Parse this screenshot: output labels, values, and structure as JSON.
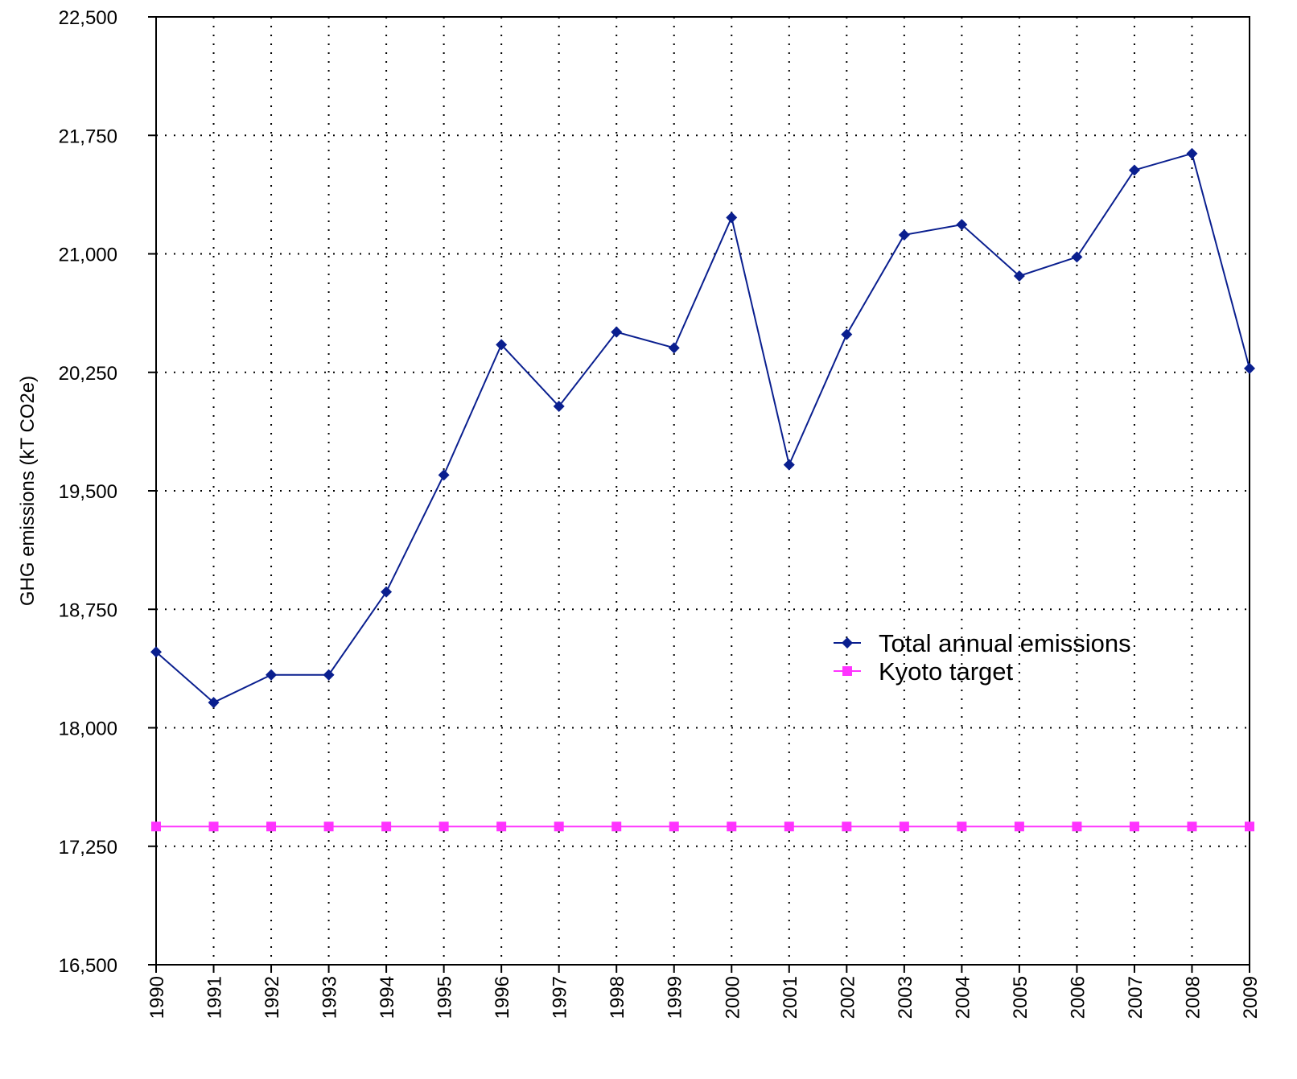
{
  "chart_data": {
    "type": "line",
    "title": "",
    "xlabel": "",
    "ylabel": "GHG emissions (kT CO2e)",
    "categories": [
      "1990",
      "1991",
      "1992",
      "1993",
      "1994",
      "1995",
      "1996",
      "1997",
      "1998",
      "1999",
      "2000",
      "2001",
      "2002",
      "2003",
      "2004",
      "2005",
      "2006",
      "2007",
      "2008",
      "2009"
    ],
    "ylim": [
      16500,
      22500
    ],
    "yticks": [
      16500,
      17250,
      18000,
      18750,
      19500,
      20250,
      21000,
      21750,
      22500
    ],
    "ytick_labels": [
      "16,500",
      "17,250",
      "18,000",
      "18,750",
      "19,500",
      "20,250",
      "21,000",
      "21,750",
      "22,500"
    ],
    "grid": true,
    "legend_position": "center-right",
    "series": [
      {
        "name": "Total annual emissions",
        "color": "#0a1f8f",
        "marker": "diamond",
        "values": [
          18480,
          18160,
          18335,
          18335,
          18860,
          19600,
          20425,
          20035,
          20505,
          20405,
          21230,
          19665,
          20490,
          21120,
          21185,
          20860,
          20980,
          21530,
          21635,
          20275
        ]
      },
      {
        "name": "Kyoto target",
        "color": "#ff33ff",
        "marker": "square",
        "values": [
          17375,
          17375,
          17375,
          17375,
          17375,
          17375,
          17375,
          17375,
          17375,
          17375,
          17375,
          17375,
          17375,
          17375,
          17375,
          17375,
          17375,
          17375,
          17375,
          17375
        ]
      }
    ]
  }
}
